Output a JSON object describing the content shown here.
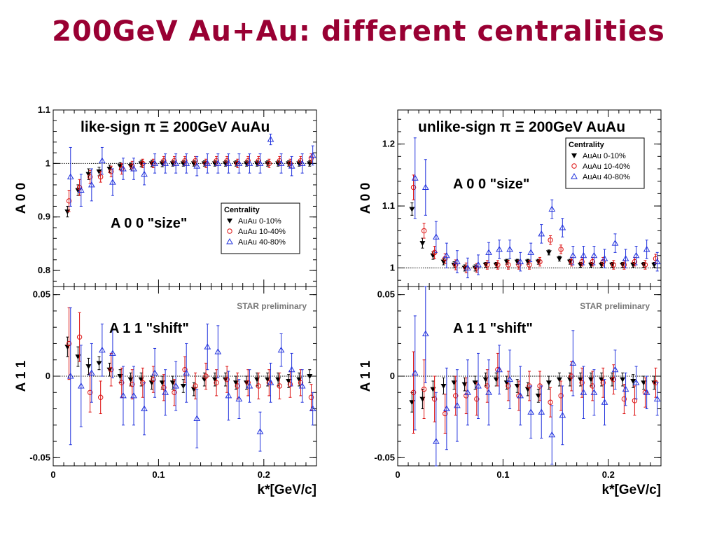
{
  "slide": {
    "title": "200GeV Au+Au: different centralities"
  },
  "colors": {
    "title": "#990033",
    "series": [
      "#000000",
      "#dd1111",
      "#2233dd"
    ]
  },
  "chart_data": [
    {
      "type": "scatter",
      "id": "left",
      "xlabel": "k*[GeV/c]",
      "xlim": [
        0,
        0.25
      ],
      "xticks": [
        0,
        0.1,
        0.2
      ],
      "xtick_labels": [
        "0",
        "0.1",
        "0.2"
      ],
      "x": [
        0.015,
        0.025,
        0.035,
        0.045,
        0.055,
        0.065,
        0.075,
        0.085,
        0.095,
        0.105,
        0.115,
        0.125,
        0.135,
        0.145,
        0.155,
        0.165,
        0.175,
        0.185,
        0.195,
        0.205,
        0.215,
        0.225,
        0.235,
        0.245
      ],
      "legend": {
        "title": "Centrality",
        "placement": "middle-right",
        "entries": [
          "AuAu 0-10%",
          "AuAu 10-40%",
          "AuAu 40-80%"
        ]
      },
      "top": {
        "title": "like-sign  π Ξ  200GeV AuAu",
        "annotation": "A 0 0 \"size\"",
        "ylabel": "A 0 0",
        "ylim": [
          0.77,
          1.1
        ],
        "yticks": [
          0.8,
          0.9,
          1,
          1.1
        ],
        "ytick_labels": [
          "0.8",
          "0.9",
          "1",
          "1.1"
        ],
        "reference_line": 1,
        "series": [
          {
            "name": "AuAu 0-10%",
            "marker": "triangle-down",
            "y": [
              0.91,
              0.95,
              0.98,
              0.985,
              0.99,
              0.995,
              0.995,
              1.0,
              1.0,
              1.0,
              1.0,
              1.0,
              1.0,
              1.0,
              1.0,
              1.0,
              1.0,
              1.0,
              1.0,
              1.0,
              1.0,
              1.0,
              1.0,
              1.0
            ],
            "err": [
              0.01,
              0.01,
              0.01,
              0.008,
              0.007,
              0.007,
              0.006,
              0.006,
              0.006,
              0.006,
              0.005,
              0.005,
              0.005,
              0.005,
              0.005,
              0.005,
              0.005,
              0.005,
              0.005,
              0.005,
              0.005,
              0.005,
              0.005,
              0.005
            ]
          },
          {
            "name": "AuAu 10-40%",
            "marker": "circle-open",
            "y": [
              0.93,
              0.955,
              0.975,
              0.975,
              0.985,
              0.99,
              0.995,
              1.0,
              1.0,
              1.005,
              1.005,
              1.005,
              1.005,
              1.0,
              1.005,
              1.005,
              1.0,
              1.005,
              1.005,
              1.0,
              1.005,
              1.0,
              1.005,
              1.01
            ],
            "err": [
              0.02,
              0.015,
              0.012,
              0.01,
              0.01,
              0.01,
              0.009,
              0.008,
              0.008,
              0.008,
              0.008,
              0.008,
              0.008,
              0.008,
              0.008,
              0.008,
              0.008,
              0.008,
              0.008,
              0.008,
              0.008,
              0.008,
              0.008,
              0.008
            ]
          },
          {
            "name": "AuAu 40-80%",
            "marker": "triangle-up-open",
            "y": [
              0.975,
              0.95,
              0.96,
              1.005,
              0.965,
              0.99,
              0.99,
              0.98,
              1.0,
              1.0,
              1.0,
              1.0,
              0.995,
              1.0,
              1.0,
              1.0,
              1.0,
              1.0,
              1.0,
              1.045,
              1.0,
              0.995,
              1.0,
              1.015
            ],
            "err": [
              0.055,
              0.03,
              0.03,
              0.025,
              0.025,
              0.02,
              0.02,
              0.02,
              0.018,
              0.018,
              0.018,
              0.018,
              0.018,
              0.018,
              0.018,
              0.018,
              0.018,
              0.018,
              0.018,
              0.01,
              0.018,
              0.018,
              0.018,
              0.018
            ]
          }
        ]
      },
      "bottom": {
        "annotation": "A 1 1 \"shift\"",
        "preliminary": "STAR preliminary",
        "ylabel": "A 1 1",
        "ylim": [
          -0.055,
          0.055
        ],
        "yticks": [
          -0.05,
          0,
          0.05
        ],
        "ytick_labels": [
          "-0.05",
          "0",
          "0.05"
        ],
        "reference_line": 0,
        "series": [
          {
            "name": "AuAu 0-10%",
            "marker": "triangle-down",
            "y": [
              0.018,
              0.012,
              0.006,
              0.008,
              0.004,
              0.0,
              -0.002,
              -0.002,
              -0.004,
              -0.004,
              -0.004,
              -0.006,
              -0.008,
              -0.002,
              -0.002,
              -0.002,
              -0.004,
              -0.004,
              -0.002,
              -0.002,
              -0.002,
              -0.003,
              -0.002,
              0.0
            ],
            "err": [
              0.006,
              0.006,
              0.005,
              0.004,
              0.004,
              0.004,
              0.004,
              0.004,
              0.004,
              0.004,
              0.004,
              0.004,
              0.004,
              0.004,
              0.004,
              0.004,
              0.004,
              0.004,
              0.004,
              0.004,
              0.004,
              0.004,
              0.004,
              0.004
            ]
          },
          {
            "name": "AuAu 10-40%",
            "marker": "circle-open",
            "y": [
              0.02,
              0.024,
              -0.01,
              -0.013,
              0.004,
              -0.004,
              -0.005,
              -0.004,
              -0.002,
              -0.007,
              -0.01,
              0.004,
              -0.006,
              0.0,
              -0.004,
              -0.002,
              -0.006,
              -0.004,
              -0.006,
              -0.004,
              -0.006,
              -0.005,
              -0.004,
              -0.013
            ],
            "err": [
              0.022,
              0.015,
              0.012,
              0.01,
              0.01,
              0.009,
              0.009,
              0.009,
              0.008,
              0.008,
              0.008,
              0.008,
              0.008,
              0.008,
              0.008,
              0.008,
              0.008,
              0.008,
              0.008,
              0.008,
              0.008,
              0.008,
              0.008,
              0.008
            ]
          },
          {
            "name": "AuAu 40-80%",
            "marker": "triangle-up-open",
            "y": [
              0.0,
              -0.006,
              0.002,
              0.016,
              0.014,
              -0.012,
              -0.012,
              -0.02,
              0.002,
              -0.01,
              -0.006,
              0.002,
              -0.026,
              0.018,
              0.015,
              -0.012,
              -0.014,
              -0.006,
              -0.034,
              -0.004,
              0.016,
              0.004,
              -0.006,
              -0.02
            ],
            "err": [
              0.042,
              0.025,
              0.018,
              0.016,
              0.015,
              0.018,
              0.018,
              0.016,
              0.015,
              0.014,
              0.015,
              0.018,
              0.018,
              0.014,
              0.016,
              0.015,
              0.012,
              0.01,
              0.012,
              0.012,
              0.01,
              0.01,
              0.01,
              0.01
            ]
          }
        ]
      }
    },
    {
      "type": "scatter",
      "id": "right",
      "xlabel": "k*[GeV/c]",
      "xlim": [
        0,
        0.25
      ],
      "xticks": [
        0,
        0.1,
        0.2
      ],
      "xtick_labels": [
        "0",
        "0.1",
        "0.2"
      ],
      "x": [
        0.015,
        0.025,
        0.035,
        0.045,
        0.055,
        0.065,
        0.075,
        0.085,
        0.095,
        0.105,
        0.115,
        0.125,
        0.135,
        0.145,
        0.155,
        0.165,
        0.175,
        0.185,
        0.195,
        0.205,
        0.215,
        0.225,
        0.235,
        0.245
      ],
      "legend": {
        "title": "Centrality",
        "placement": "top-right",
        "entries": [
          "AuAu 0-10%",
          "AuAu 10-40%",
          "AuAu 40-80%"
        ]
      },
      "top": {
        "title": "unlike-sign  π Ξ  200GeV AuAu",
        "annotation": "A 0 0 \"size\"",
        "ylabel": "A 0 0",
        "ylim": [
          0.97,
          1.255
        ],
        "yticks": [
          1,
          1.1,
          1.2
        ],
        "ytick_labels": [
          "1",
          "1.1",
          "1.2"
        ],
        "reference_line": 1,
        "series": [
          {
            "name": "AuAu 0-10%",
            "marker": "triangle-down",
            "y": [
              1.095,
              1.04,
              1.02,
              1.01,
              1.005,
              1.0,
              1.0,
              1.005,
              1.005,
              1.01,
              1.01,
              1.01,
              1.01,
              1.025,
              1.015,
              1.01,
              1.005,
              1.005,
              1.005,
              1.005,
              1.005,
              1.005,
              1.005,
              1.005
            ],
            "err": [
              0.01,
              0.008,
              0.006,
              0.005,
              0.005,
              0.005,
              0.005,
              0.004,
              0.004,
              0.004,
              0.004,
              0.004,
              0.004,
              0.004,
              0.004,
              0.004,
              0.004,
              0.004,
              0.004,
              0.004,
              0.004,
              0.004,
              0.004,
              0.004
            ]
          },
          {
            "name": "AuAu 10-40%",
            "marker": "circle-open",
            "y": [
              1.13,
              1.06,
              1.025,
              1.015,
              1.005,
              1.0,
              1.0,
              1.005,
              1.005,
              1.005,
              1.005,
              1.005,
              1.01,
              1.045,
              1.03,
              1.01,
              1.01,
              1.01,
              1.01,
              1.005,
              1.005,
              1.01,
              1.005,
              1.015
            ],
            "err": [
              0.02,
              0.012,
              0.01,
              0.008,
              0.008,
              0.008,
              0.007,
              0.007,
              0.007,
              0.007,
              0.007,
              0.007,
              0.007,
              0.007,
              0.007,
              0.007,
              0.007,
              0.007,
              0.007,
              0.007,
              0.007,
              0.007,
              0.007,
              0.007
            ]
          },
          {
            "name": "AuAu 40-80%",
            "marker": "triangle-up-open",
            "y": [
              1.145,
              1.13,
              1.05,
              1.02,
              1.01,
              1.0,
              1.005,
              1.025,
              1.03,
              1.03,
              1.01,
              1.025,
              1.055,
              1.095,
              1.065,
              1.02,
              1.02,
              1.02,
              1.015,
              1.04,
              1.015,
              1.02,
              1.03,
              1.01
            ],
            "err": [
              0.065,
              0.045,
              0.025,
              0.02,
              0.018,
              0.016,
              0.016,
              0.016,
              0.015,
              0.015,
              0.015,
              0.015,
              0.015,
              0.015,
              0.015,
              0.015,
              0.015,
              0.015,
              0.015,
              0.015,
              0.015,
              0.015,
              0.015,
              0.015
            ]
          }
        ]
      },
      "bottom": {
        "annotation": "A 1 1 \"shift\"",
        "preliminary": "STAR preliminary",
        "ylabel": "A 1 1",
        "ylim": [
          -0.055,
          0.055
        ],
        "yticks": [
          -0.05,
          0,
          0.05
        ],
        "ytick_labels": [
          "-0.05",
          "0",
          "0.05"
        ],
        "reference_line": 0,
        "series": [
          {
            "name": "AuAu 0-10%",
            "marker": "triangle-down",
            "y": [
              -0.016,
              -0.014,
              -0.008,
              -0.006,
              -0.004,
              -0.005,
              -0.004,
              -0.002,
              -0.002,
              -0.004,
              -0.006,
              -0.008,
              -0.012,
              -0.004,
              -0.002,
              -0.002,
              -0.002,
              -0.002,
              -0.002,
              -0.002,
              -0.002,
              -0.003,
              -0.004,
              -0.004
            ],
            "err": [
              0.006,
              0.006,
              0.005,
              0.005,
              0.004,
              0.004,
              0.004,
              0.004,
              0.004,
              0.004,
              0.004,
              0.004,
              0.004,
              0.004,
              0.004,
              0.004,
              0.004,
              0.004,
              0.004,
              0.004,
              0.004,
              0.004,
              0.004,
              0.004
            ]
          },
          {
            "name": "AuAu 10-40%",
            "marker": "circle-open",
            "y": [
              -0.01,
              -0.008,
              -0.014,
              -0.023,
              -0.012,
              -0.012,
              -0.014,
              -0.006,
              0.004,
              -0.006,
              -0.012,
              -0.006,
              -0.006,
              -0.016,
              -0.012,
              0.0,
              -0.004,
              -0.006,
              -0.004,
              -0.002,
              -0.014,
              -0.015,
              -0.01,
              -0.004
            ],
            "err": [
              0.025,
              0.018,
              0.014,
              0.012,
              0.012,
              0.011,
              0.01,
              0.01,
              0.01,
              0.009,
              0.009,
              0.009,
              0.009,
              0.009,
              0.009,
              0.009,
              0.009,
              0.009,
              0.009,
              0.009,
              0.009,
              0.009,
              0.009,
              0.009
            ]
          },
          {
            "name": "AuAu 40-80%",
            "marker": "triangle-up-open",
            "y": [
              0.002,
              0.026,
              -0.04,
              -0.02,
              -0.018,
              -0.01,
              -0.006,
              -0.01,
              0.004,
              -0.002,
              -0.012,
              -0.022,
              -0.022,
              -0.036,
              -0.024,
              0.008,
              -0.01,
              -0.01,
              -0.016,
              0.004,
              -0.008,
              -0.004,
              -0.01,
              -0.014
            ],
            "err": [
              0.035,
              0.03,
              0.03,
              0.025,
              0.022,
              0.02,
              0.02,
              0.02,
              0.015,
              0.018,
              0.018,
              0.016,
              0.016,
              0.018,
              0.018,
              0.02,
              0.016,
              0.014,
              0.014,
              0.012,
              0.01,
              0.01,
              0.01,
              0.01
            ]
          }
        ]
      }
    }
  ]
}
